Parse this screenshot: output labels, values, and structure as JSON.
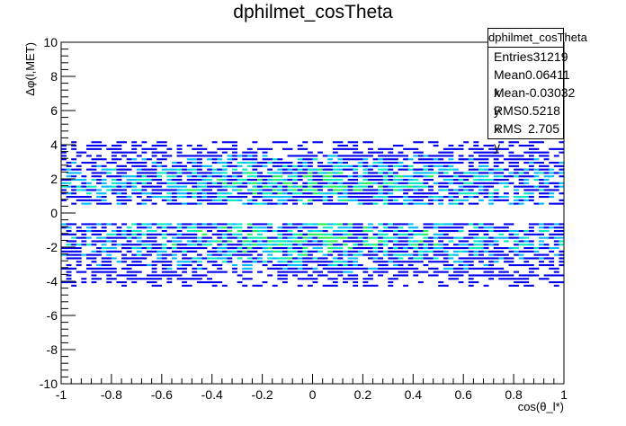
{
  "title": "dphilmet_cosTheta",
  "stats_box": {
    "name": "dphilmet_cosTheta",
    "rows": [
      {
        "label": "Entries",
        "value": "31219"
      },
      {
        "label": "Mean x",
        "value": "0.06411"
      },
      {
        "label": "Mean y",
        "value": "-0.03032"
      },
      {
        "label": "RMS x",
        "value": "0.5218"
      },
      {
        "label": "RMS y",
        "value": "2.705"
      }
    ]
  },
  "chart_data": {
    "type": "heatmap",
    "title": "dphilmet_cosTheta",
    "xlabel": "cos(θ_l*)",
    "ylabel": "Δφ(l,MET)",
    "xlim": [
      -1,
      1
    ],
    "ylim": [
      -10,
      10
    ],
    "x_ticks": [
      "-1",
      "-0.8",
      "-0.6",
      "-0.4",
      "-0.2",
      "0",
      "0.2",
      "0.4",
      "0.6",
      "0.8",
      "1"
    ],
    "y_ticks": [
      "-10",
      "-8",
      "-6",
      "-4",
      "-2",
      "0",
      "2",
      "4",
      "6",
      "8",
      "10"
    ],
    "grid": false,
    "colormap": [
      "#0000ee",
      "#00bbff",
      "#00e8c0",
      "#22ee55"
    ],
    "bins": {
      "x": 100,
      "y": 100
    },
    "bands": [
      {
        "y_center": 1.6,
        "y_range": [
          0.5,
          5.2
        ],
        "peak_density": "high"
      },
      {
        "y_center": -1.6,
        "y_range": [
          -5.6,
          -0.6
        ],
        "peak_density": "high"
      }
    ]
  }
}
